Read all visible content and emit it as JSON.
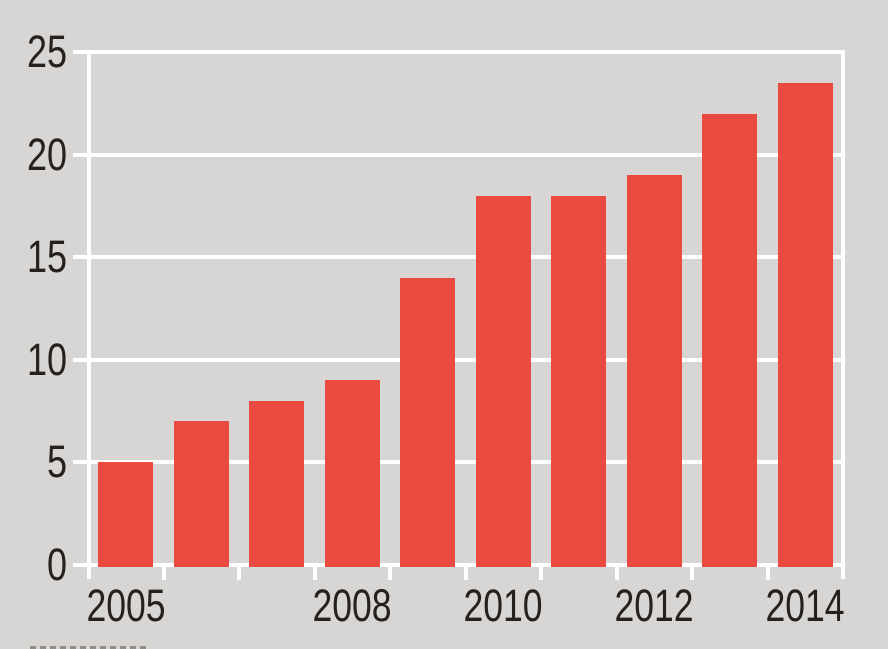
{
  "chart_data": {
    "type": "bar",
    "categories": [
      "2005",
      "2006",
      "2007",
      "2008",
      "2009",
      "2010",
      "2011",
      "2012",
      "2013",
      "2014"
    ],
    "values": [
      5,
      7,
      8,
      9,
      14,
      18,
      18,
      19,
      22,
      23.5
    ],
    "title": "",
    "xlabel": "",
    "ylabel": "",
    "ylim": [
      0,
      25
    ],
    "yticks": [
      0,
      5,
      10,
      15,
      20,
      25
    ],
    "xtick_labels_shown": [
      "2005",
      "2008",
      "2010",
      "2012",
      "2014"
    ],
    "grid": true,
    "legend": false,
    "bar_color": "#EB4A40",
    "background_color": "#D7D6D4",
    "gridline_color": "#FFFFFF",
    "text_color": "#26211C"
  }
}
